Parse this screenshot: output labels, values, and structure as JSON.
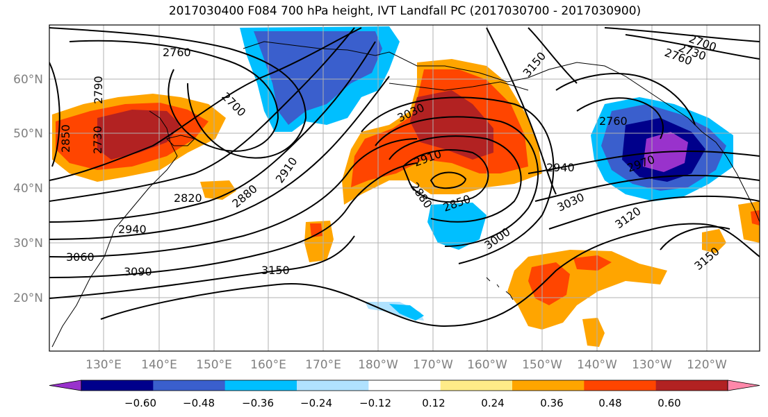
{
  "title": "2017030400 F084 700 hPa height, IVT Landfall PC (2017030700 - 2017030900)",
  "map": {
    "lat_labels": [
      "60°N",
      "50°N",
      "40°N",
      "30°N",
      "20°N"
    ],
    "lon_labels": [
      "130°E",
      "140°E",
      "150°E",
      "160°E",
      "170°E",
      "180°W",
      "170°W",
      "160°W",
      "150°W",
      "140°W",
      "130°W",
      "120°W"
    ],
    "contour_labels": [
      "2760",
      "2790",
      "2850",
      "2700",
      "2730",
      "2820",
      "2880",
      "2910",
      "2940",
      "3060",
      "3090",
      "3150",
      "3030",
      "2910",
      "2850",
      "2880",
      "3000",
      "2940",
      "3030",
      "3120",
      "3150",
      "2760",
      "2970",
      "2700",
      "2730",
      "2760",
      "3150"
    ]
  },
  "colorbar": {
    "ticks": [
      "−0.60",
      "−0.48",
      "−0.36",
      "−0.24",
      "−0.12",
      "0.12",
      "0.24",
      "0.36",
      "0.48",
      "0.60"
    ],
    "colors": [
      "#9932cc",
      "#00008b",
      "#3a5fcd",
      "#00bfff",
      "#b0e2ff",
      "#ffffff",
      "#ffeb88",
      "#ffa500",
      "#ff4500",
      "#b22222",
      "#ff88aa"
    ]
  }
}
